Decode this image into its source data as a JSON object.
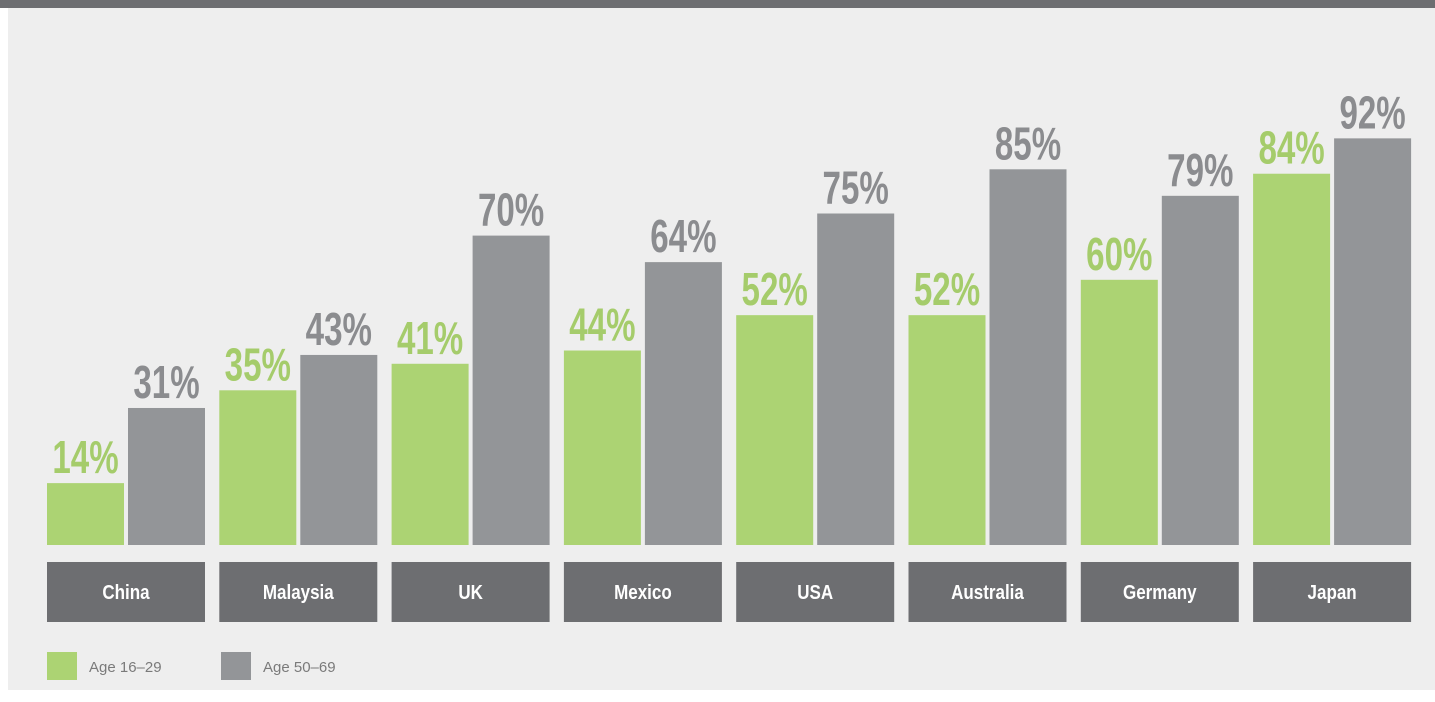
{
  "chart_data": {
    "type": "bar",
    "categories": [
      "China",
      "Malaysia",
      "UK",
      "Mexico",
      "USA",
      "Australia",
      "Germany",
      "Japan"
    ],
    "series": [
      {
        "name": "Age 16–29",
        "color": "#acd373",
        "label_color": "#a5cc6b",
        "values": [
          14,
          35,
          41,
          44,
          52,
          52,
          60,
          84
        ],
        "value_labels": [
          "14%",
          "35%",
          "41%",
          "44%",
          "52%",
          "52%",
          "60%",
          "84%"
        ]
      },
      {
        "name": "Age 50–69",
        "color": "#939598",
        "label_color": "#8b8c8f",
        "values": [
          31,
          43,
          70,
          64,
          75,
          85,
          79,
          92
        ],
        "value_labels": [
          "31%",
          "43%",
          "70%",
          "64%",
          "75%",
          "85%",
          "79%",
          "92%"
        ]
      }
    ],
    "ylim": [
      0,
      100
    ]
  }
}
